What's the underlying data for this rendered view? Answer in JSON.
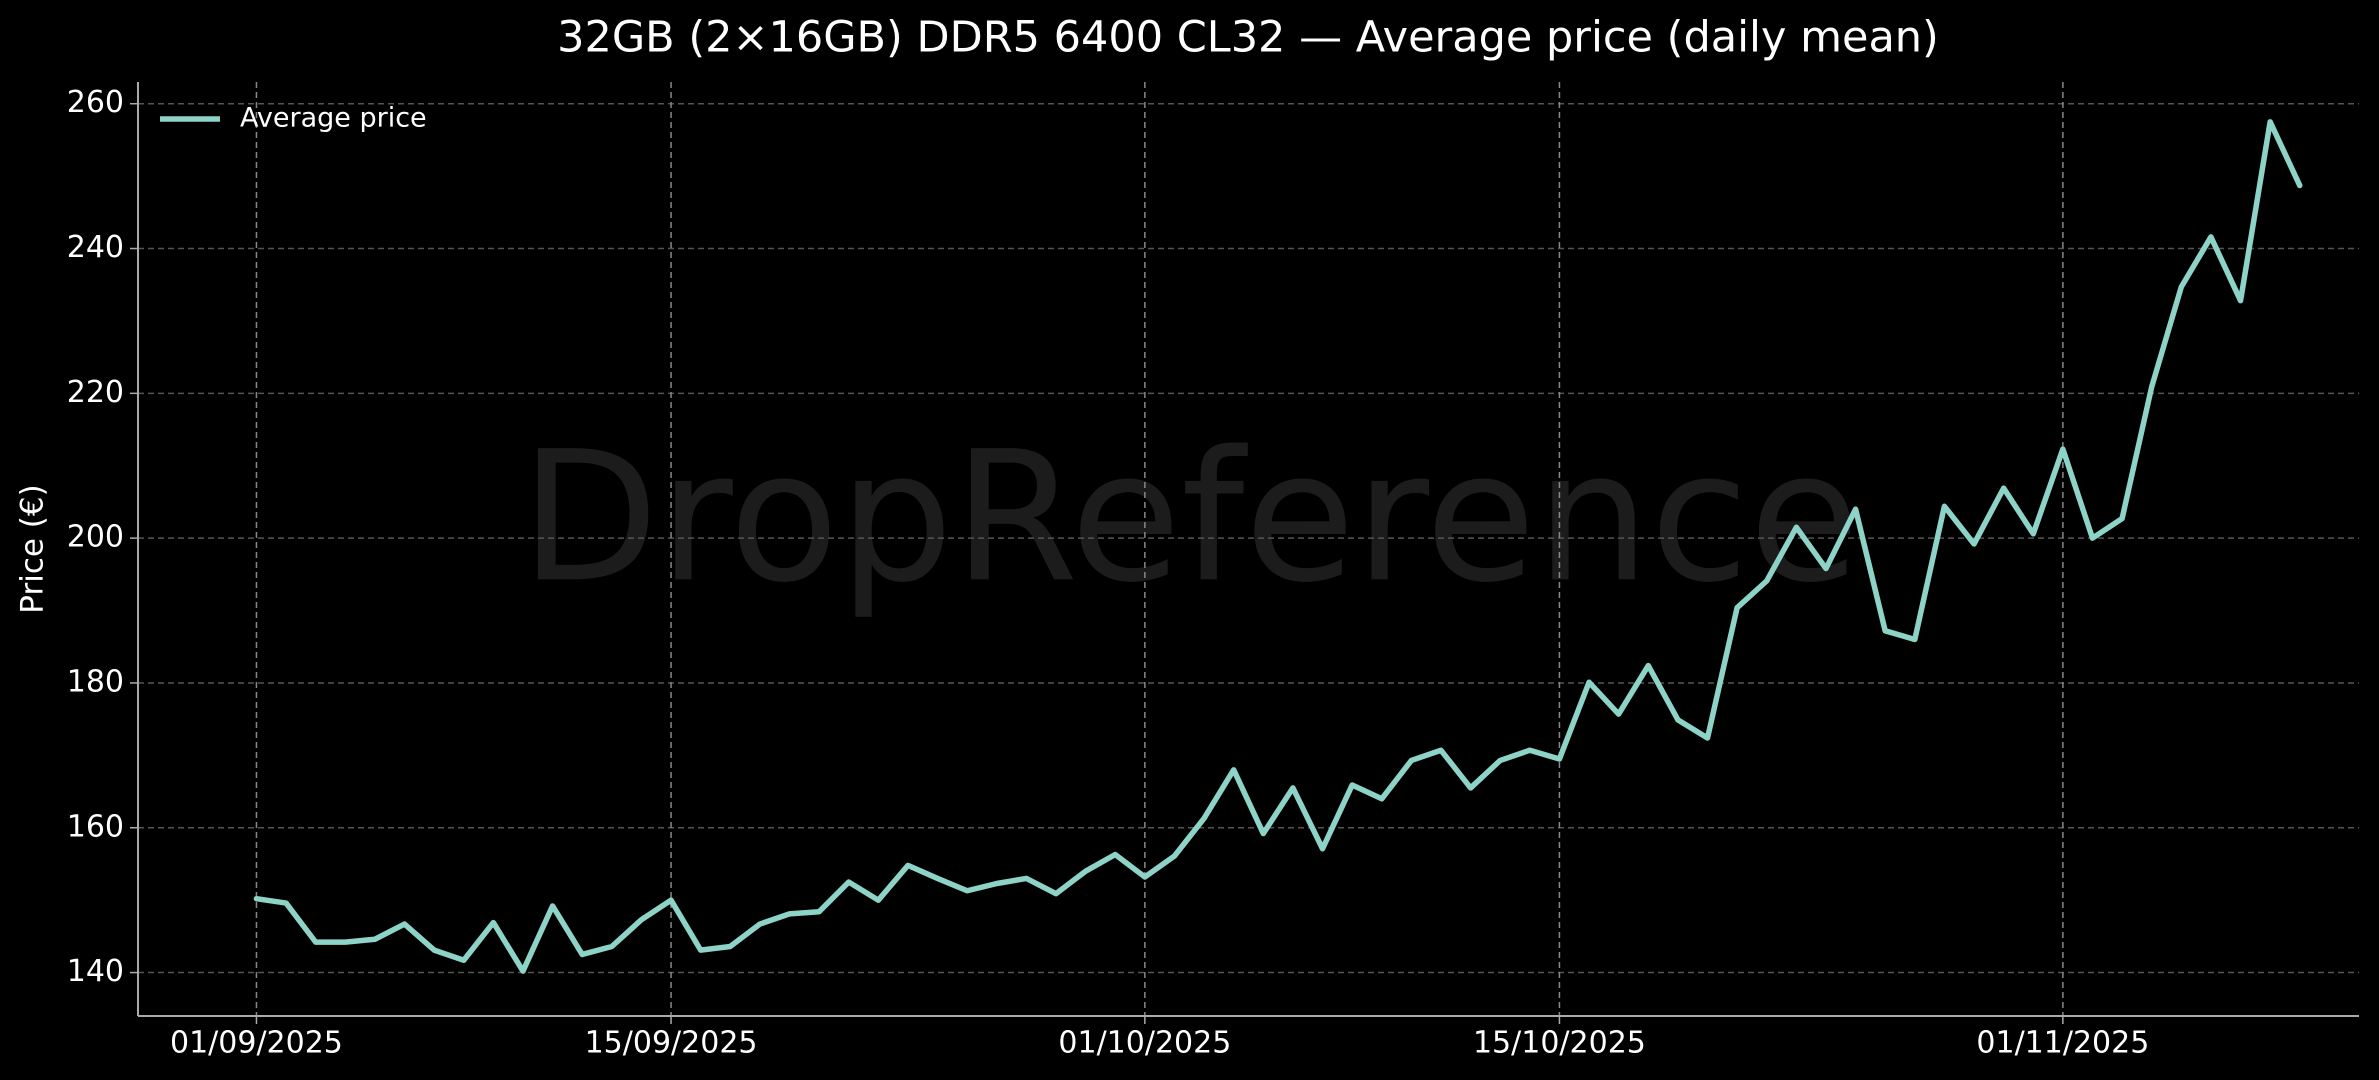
{
  "chart_data": {
    "type": "line",
    "title": "32GB (2×16GB) DDR5 6400 CL32 — Average price (daily mean)",
    "ylabel": "Price (€)",
    "watermark": "DropReference",
    "x": [
      "2025-09-01",
      "2025-09-02",
      "2025-09-03",
      "2025-09-04",
      "2025-09-05",
      "2025-09-06",
      "2025-09-07",
      "2025-09-08",
      "2025-09-09",
      "2025-09-10",
      "2025-09-11",
      "2025-09-12",
      "2025-09-13",
      "2025-09-14",
      "2025-09-15",
      "2025-09-16",
      "2025-09-17",
      "2025-09-18",
      "2025-09-19",
      "2025-09-20",
      "2025-09-21",
      "2025-09-22",
      "2025-09-23",
      "2025-09-24",
      "2025-09-25",
      "2025-09-26",
      "2025-09-27",
      "2025-09-28",
      "2025-09-29",
      "2025-09-30",
      "2025-10-01",
      "2025-10-02",
      "2025-10-03",
      "2025-10-04",
      "2025-10-05",
      "2025-10-06",
      "2025-10-07",
      "2025-10-08",
      "2025-10-09",
      "2025-10-10",
      "2025-10-11",
      "2025-10-12",
      "2025-10-13",
      "2025-10-14",
      "2025-10-15",
      "2025-10-16",
      "2025-10-17",
      "2025-10-18",
      "2025-10-19",
      "2025-10-20",
      "2025-10-21",
      "2025-10-22",
      "2025-10-23",
      "2025-10-24",
      "2025-10-25",
      "2025-10-26",
      "2025-10-27",
      "2025-10-28",
      "2025-10-29",
      "2025-10-30",
      "2025-10-31",
      "2025-11-01",
      "2025-11-02",
      "2025-11-03",
      "2025-11-04",
      "2025-11-05",
      "2025-11-06",
      "2025-11-07",
      "2025-11-08",
      "2025-11-09"
    ],
    "series": [
      {
        "name": "Average price",
        "color": "#8dd3c7",
        "values": [
          150.2,
          149.6,
          144.2,
          144.2,
          144.6,
          146.7,
          143.1,
          141.7,
          146.9,
          140.2,
          149.2,
          142.5,
          143.6,
          147.3,
          150.0,
          143.1,
          143.6,
          146.7,
          148.1,
          148.4,
          152.5,
          150.0,
          154.8,
          153.0,
          151.3,
          152.3,
          153.0,
          150.9,
          154.0,
          156.3,
          153.2,
          156.1,
          161.3,
          168.0,
          159.2,
          165.5,
          157.1,
          165.9,
          164.0,
          169.3,
          170.7,
          165.5,
          169.3,
          170.7,
          169.5,
          180.1,
          175.7,
          182.4,
          174.9,
          172.4,
          190.4,
          194.1,
          201.5,
          195.8,
          204.0,
          187.2,
          186.0,
          204.4,
          199.2,
          206.9,
          200.6,
          212.3,
          200.0,
          202.7,
          220.9,
          234.7,
          241.6,
          232.8,
          257.5,
          248.7
        ]
      }
    ],
    "xlim": [
      "2025-08-28",
      "2025-11-11"
    ],
    "xticks": [
      {
        "value": "2025-09-01",
        "label": "01/09/2025"
      },
      {
        "value": "2025-09-15",
        "label": "15/09/2025"
      },
      {
        "value": "2025-10-01",
        "label": "01/10/2025"
      },
      {
        "value": "2025-10-15",
        "label": "15/10/2025"
      },
      {
        "value": "2025-11-01",
        "label": "01/11/2025"
      }
    ],
    "ylim": [
      134,
      263
    ],
    "yticks": [
      140,
      160,
      180,
      200,
      220,
      240,
      260
    ],
    "grid": true,
    "legend": "upper left"
  }
}
